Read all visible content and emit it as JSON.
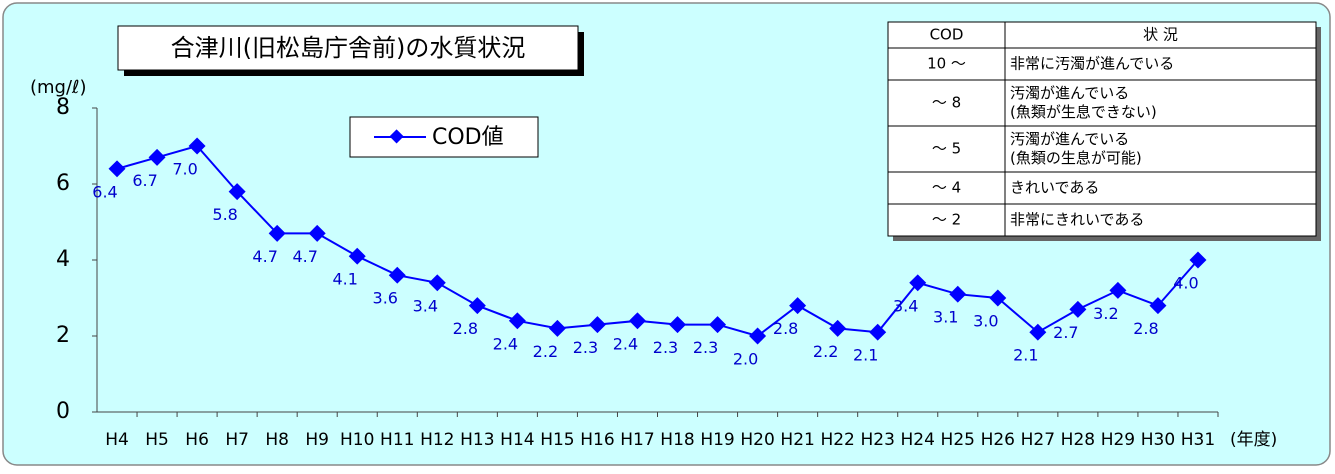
{
  "chart_data": {
    "type": "line",
    "title": "合津川(旧松島庁舎前)の水質状況",
    "y_label": "(mg/ℓ)",
    "x_label": "(年度)",
    "categories": [
      "H4",
      "H5",
      "H6",
      "H7",
      "H8",
      "H9",
      "H10",
      "H11",
      "H12",
      "H13",
      "H14",
      "H15",
      "H16",
      "H17",
      "H18",
      "H19",
      "H20",
      "H21",
      "H22",
      "H23",
      "H24",
      "H25",
      "H26",
      "H27",
      "H28",
      "H29",
      "H30",
      "H31"
    ],
    "series": [
      {
        "name": "COD値",
        "color": "#0000ff",
        "values": [
          6.4,
          6.7,
          7.0,
          5.8,
          4.7,
          4.7,
          4.1,
          3.6,
          3.4,
          2.8,
          2.4,
          2.2,
          2.3,
          2.4,
          2.3,
          2.3,
          2.0,
          2.8,
          2.2,
          2.1,
          3.4,
          3.1,
          3.0,
          2.1,
          2.7,
          3.2,
          2.8,
          4.0
        ],
        "value_labels": [
          "6.4",
          "6.7",
          "7.0",
          "5.8",
          "4.7",
          "4.7",
          "4.1",
          "3.6",
          "3.4",
          "2.8",
          "2.4",
          "2.2",
          "2.3",
          "2.4",
          "2.3",
          "2.3",
          "2.0",
          "2.8",
          "2.2",
          "2.1",
          "3.4",
          "3.1",
          "3.0",
          "2.1",
          "2.7",
          "3.2",
          "2.8",
          "4.0"
        ]
      }
    ],
    "ylim": [
      0,
      8
    ],
    "yticks": [
      0,
      2,
      4,
      6,
      8
    ],
    "grid": false
  },
  "table": {
    "header": [
      "COD",
      "状 況"
    ],
    "rows": [
      [
        "10 〜",
        [
          "非常に汚濁が進んでいる"
        ]
      ],
      [
        "〜 8",
        [
          "汚濁が進んでいる",
          "(魚類が生息できない)"
        ]
      ],
      [
        "〜 5",
        [
          "汚濁が進んでいる",
          "(魚類の生息が可能)"
        ]
      ],
      [
        "〜 4",
        [
          "きれいである"
        ]
      ],
      [
        "〜 2",
        [
          "非常にきれいである"
        ]
      ]
    ]
  }
}
